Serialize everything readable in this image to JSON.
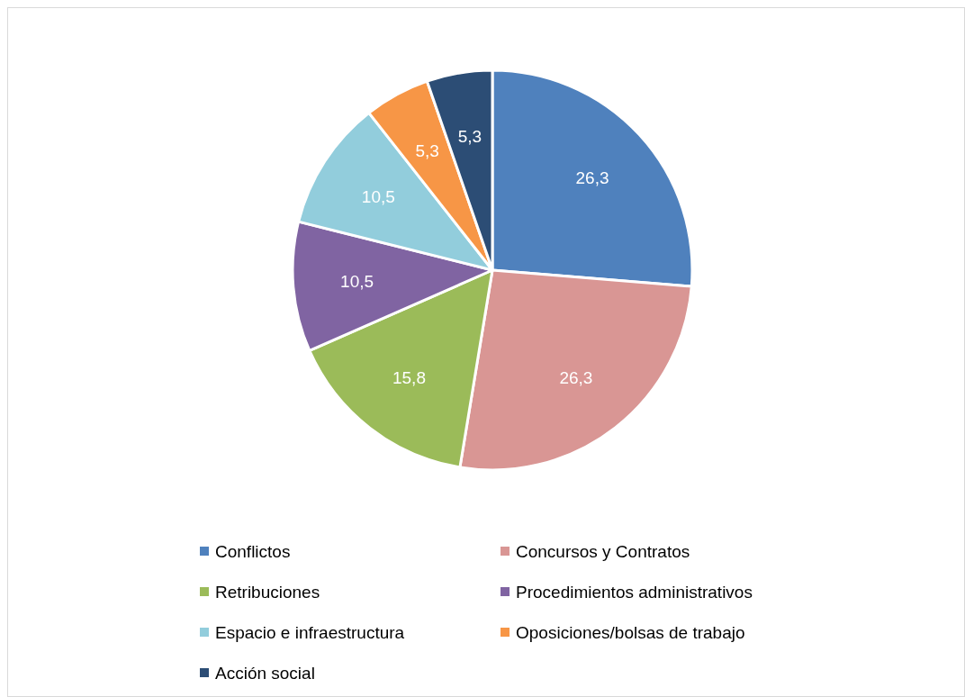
{
  "chart_data": {
    "type": "pie",
    "categories": [
      "Conflictos",
      "Concursos y Contratos",
      "Retribuciones",
      "Procedimientos administrativos",
      "Espacio e infraestructura",
      "Oposiciones/bolsas de trabajo",
      "Acción social"
    ],
    "values": [
      26.3,
      26.3,
      15.8,
      10.5,
      10.5,
      5.3,
      5.3
    ],
    "colors": [
      "#4f81bd",
      "#d99694",
      "#9bbb59",
      "#8064a2",
      "#92cddc",
      "#f79646",
      "#2c4d75"
    ],
    "value_labels": [
      "26,3",
      "26,3",
      "15,8",
      "10,5",
      "10,5",
      "5,3",
      "5,3"
    ],
    "legend": "bottom"
  }
}
